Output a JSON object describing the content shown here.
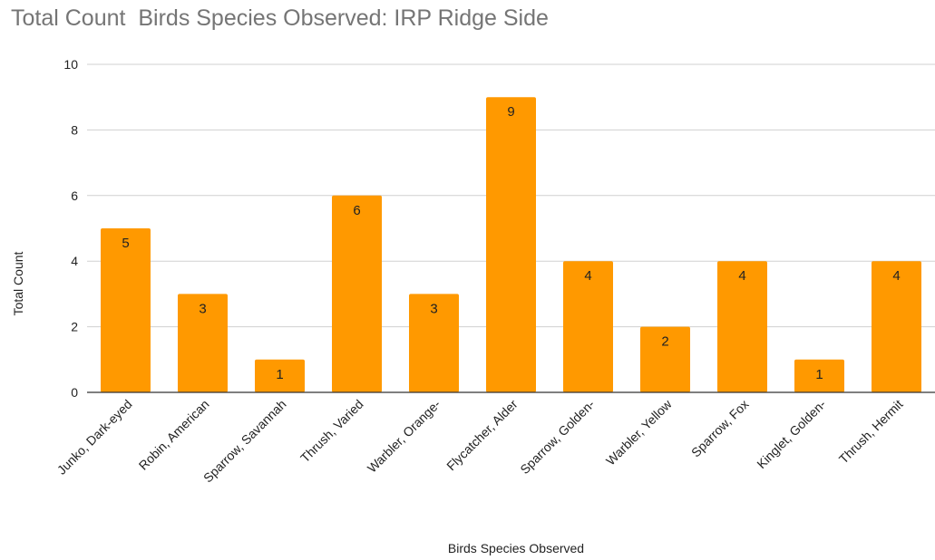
{
  "chart_data": {
    "type": "bar",
    "title": "Total Count  Birds Species Observed: IRP Ridge Side",
    "xlabel": "Birds Species Observed",
    "ylabel": "Total Count",
    "categories": [
      "Junko, Dark-eyed",
      "Robin, American",
      "Sparrow, Savannah",
      "Thrush, Varied",
      "Warbler, Orange-",
      "Flycatcher, Alder",
      "Sparrow, Golden-",
      "Warbler, Yellow",
      "Sparrow, Fox",
      "Kinglet, Golden-",
      "Thrush, Hermit"
    ],
    "values": [
      5,
      3,
      1,
      6,
      3,
      9,
      4,
      2,
      4,
      1,
      4
    ],
    "ylim": [
      0,
      10
    ],
    "yticks": [
      0,
      2,
      4,
      6,
      8,
      10
    ],
    "grid": true,
    "bar_color": "#ff9900",
    "data_labels": true
  }
}
